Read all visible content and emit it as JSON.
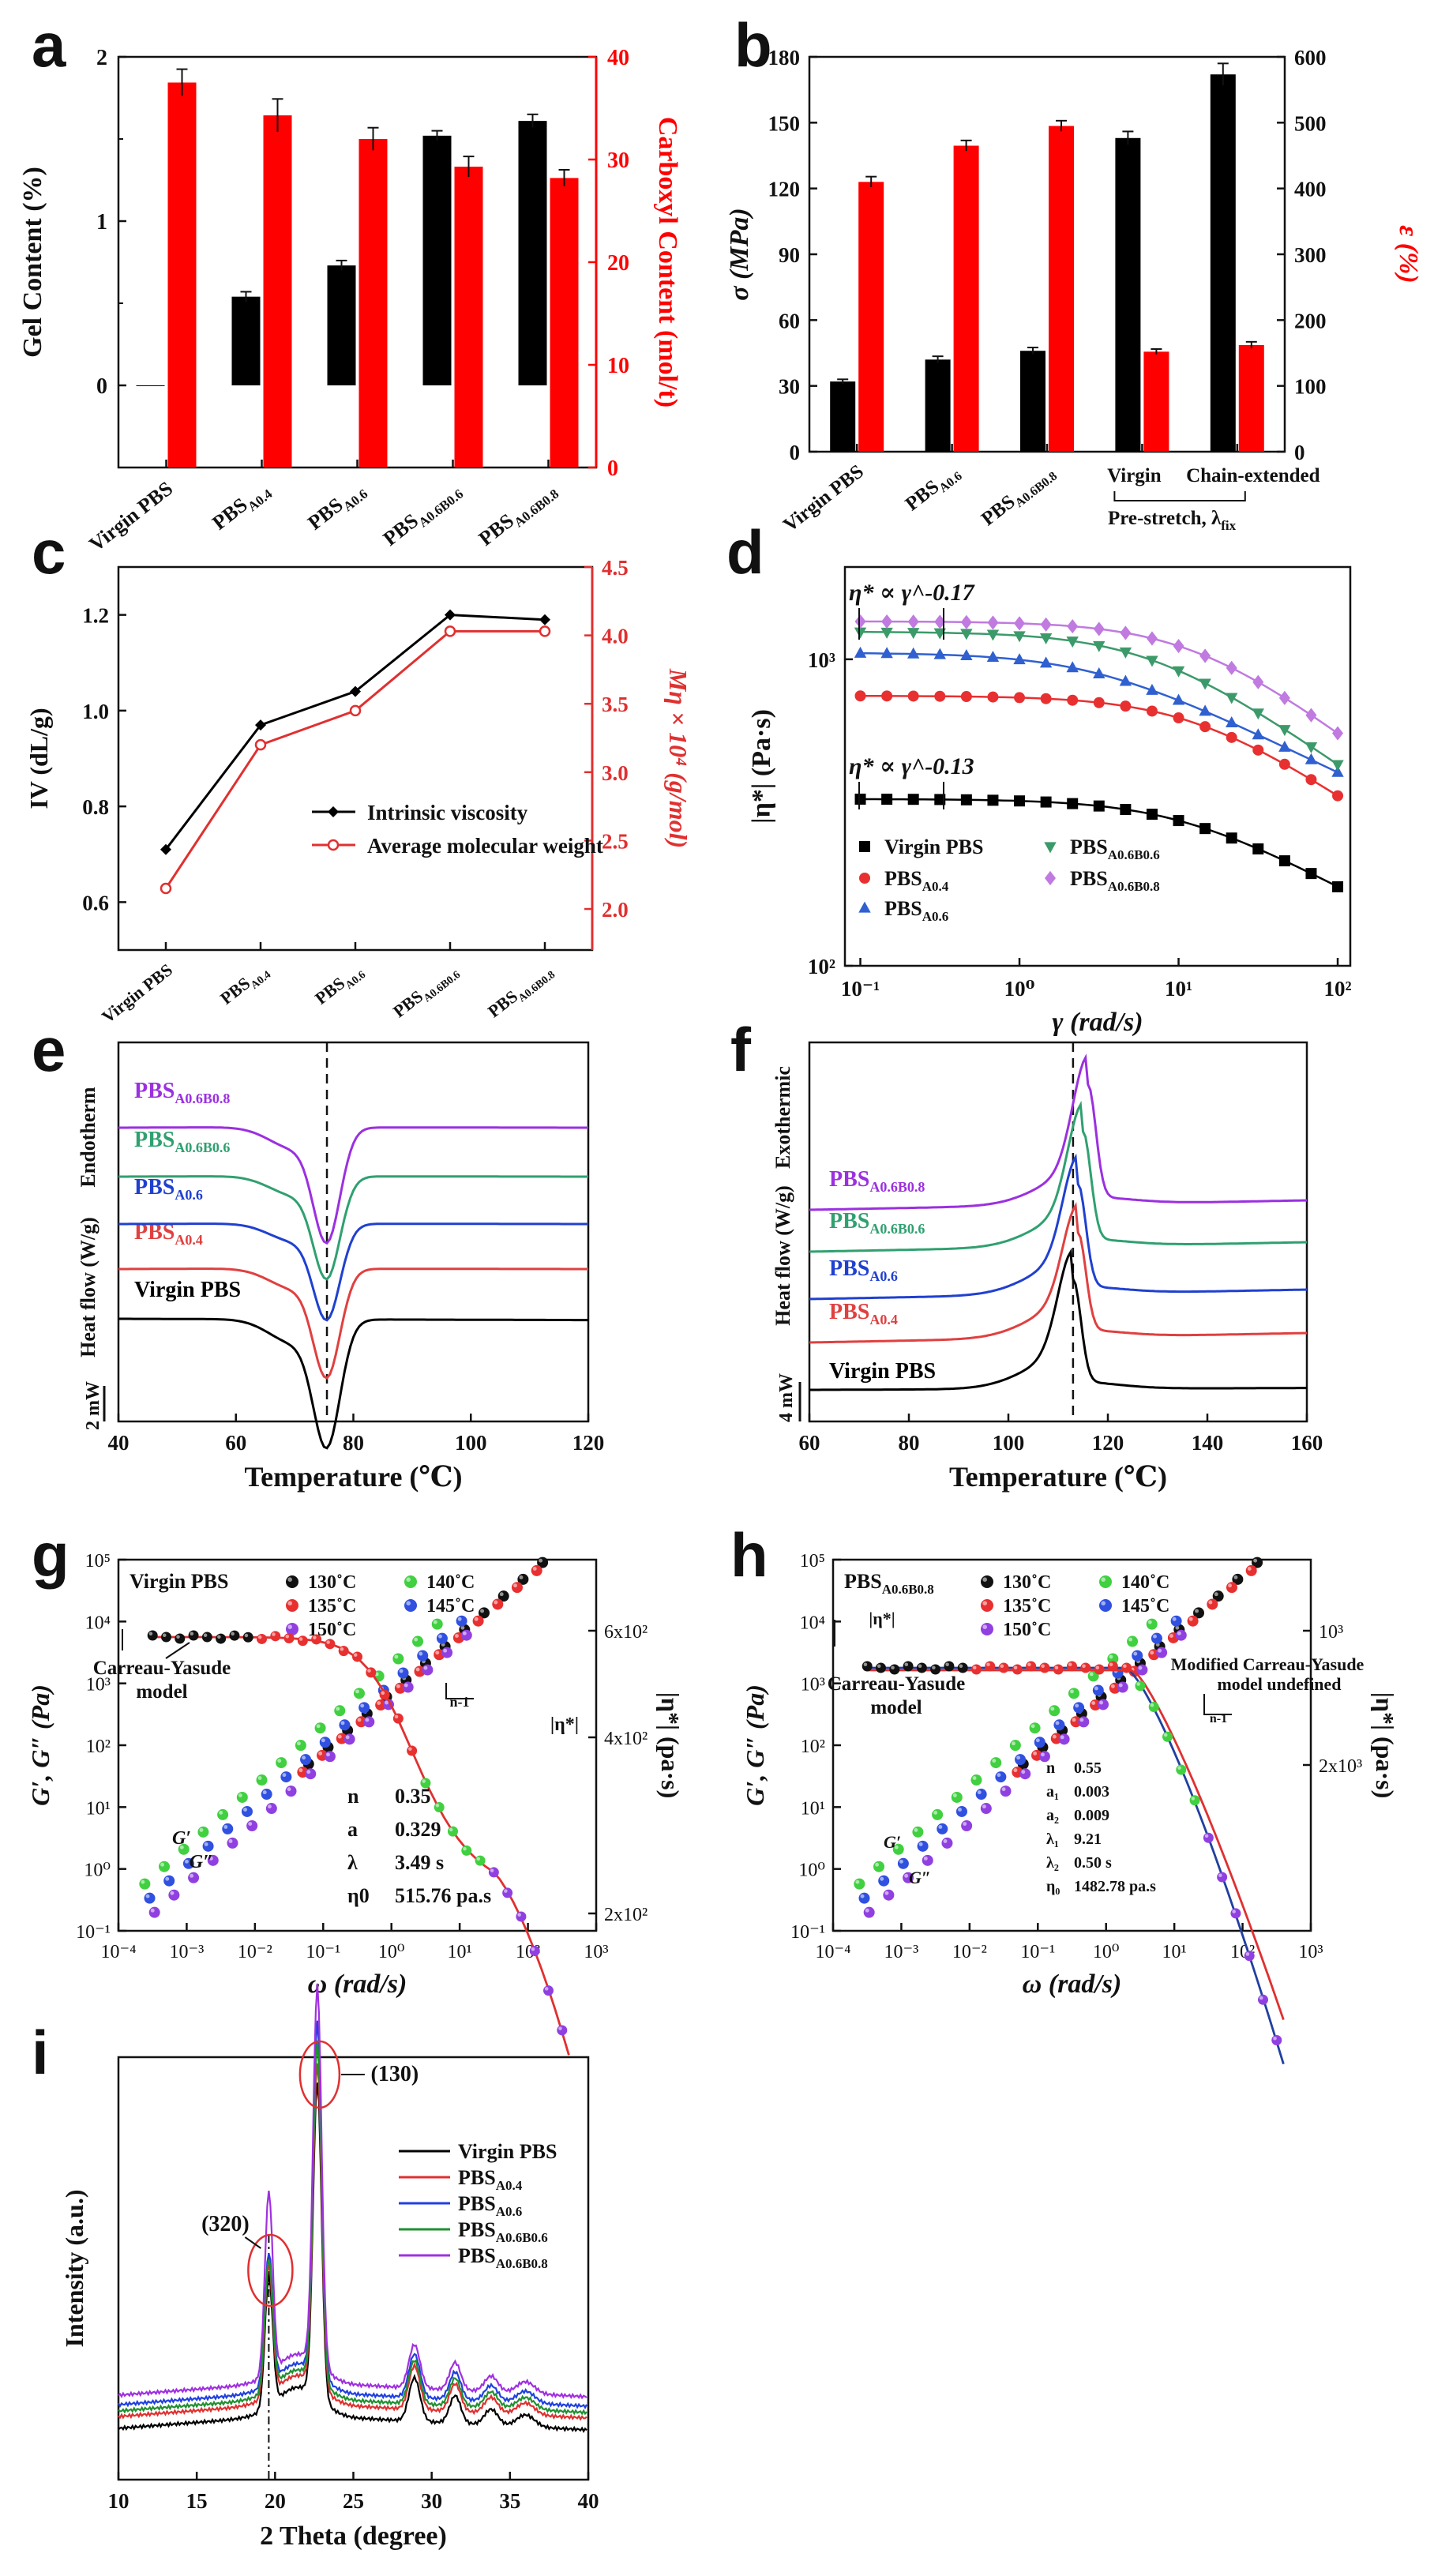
{
  "panels": {
    "a": {
      "letter": "a"
    },
    "b": {
      "letter": "b"
    },
    "c": {
      "letter": "c"
    },
    "d": {
      "letter": "d"
    },
    "e": {
      "letter": "e"
    },
    "f": {
      "letter": "f"
    },
    "g": {
      "letter": "g"
    },
    "h": {
      "letter": "h"
    },
    "i": {
      "letter": "i"
    }
  },
  "chart_data": [
    {
      "id": "a",
      "type": "bar",
      "categories": [
        "Virgin PBS",
        "PBS_A0.4",
        "PBS_A0.6",
        "PBS_A0.6B0.6",
        "PBS_A0.6B0.8"
      ],
      "ylabel": "Gel Content (%)",
      "y2label": "Carboxyl Content (mol/t)",
      "ylim": [
        -0.5,
        2
      ],
      "y2lim": [
        0,
        40
      ],
      "yticks": [
        "0",
        "1",
        "2"
      ],
      "y2ticks": [
        "0",
        "10",
        "20",
        "30",
        "40"
      ],
      "series": [
        {
          "name": "Gel Content",
          "color": "#000000",
          "axis": "left",
          "values": [
            0.0,
            0.54,
            0.73,
            1.52,
            1.61
          ],
          "err": [
            0.0,
            0.03,
            0.03,
            0.03,
            0.04
          ]
        },
        {
          "name": "Carboxyl Content",
          "color": "#ff0000",
          "axis": "right",
          "values": [
            37.5,
            34.3,
            32.0,
            29.3,
            28.2
          ],
          "err": [
            1.3,
            1.6,
            1.1,
            1.0,
            0.8
          ]
        }
      ]
    },
    {
      "id": "b",
      "type": "bar",
      "categories": [
        "Virgin PBS",
        "PBS_A0.6",
        "PBS_A0.6B0.8",
        "Virgin",
        "Chain-extended"
      ],
      "group_label": "Pre-stretch, λ",
      "group_label_sub": "fix",
      "ylabel": "σ (MPa)",
      "y2label": "ε (%)",
      "ylim": [
        0,
        180
      ],
      "y2lim": [
        0,
        600
      ],
      "yticks": [
        "0",
        "30",
        "60",
        "90",
        "120",
        "150",
        "180"
      ],
      "y2ticks": [
        "0",
        "100",
        "200",
        "300",
        "400",
        "500",
        "600"
      ],
      "series": [
        {
          "name": "σ",
          "color": "#000000",
          "axis": "left",
          "values": [
            32,
            42,
            46,
            143,
            172
          ],
          "err": [
            1,
            1.5,
            1.5,
            3,
            5
          ]
        },
        {
          "name": "ε",
          "color": "#ff0000",
          "axis": "right",
          "values": [
            410,
            465,
            495,
            152,
            162
          ],
          "err": [
            8,
            8,
            8,
            4,
            5
          ]
        }
      ]
    },
    {
      "id": "c",
      "type": "line",
      "categories": [
        "Virgin PBS",
        "PBS_A0.4",
        "PBS_A0.6",
        "PBS_A0.6B0.6",
        "PBS_A0.6B0.8"
      ],
      "ylabel": "IV (dL/g)",
      "y2label": "Mη × 10⁴ (g/mol)",
      "ylim": [
        0.5,
        1.3
      ],
      "y2lim": [
        1.7,
        4.5
      ],
      "yticks": [
        "0.6",
        "0.8",
        "1.0",
        "1.2"
      ],
      "y2ticks": [
        "2.0",
        "2.5",
        "3.0",
        "3.5",
        "4.0",
        "4.5"
      ],
      "series": [
        {
          "name": "Intrinsic viscosity",
          "color": "#000000",
          "axis": "left",
          "values": [
            0.71,
            0.97,
            1.04,
            1.2,
            1.19
          ]
        },
        {
          "name": "Average molecular weight",
          "color": "#e03030",
          "axis": "right",
          "values": [
            2.15,
            3.2,
            3.45,
            4.03,
            4.03
          ]
        }
      ]
    },
    {
      "id": "d",
      "type": "scatter",
      "xlabel": "γ (rad/s)",
      "ylabel": "|η*| (Pa·s)",
      "xlim": [
        0.08,
        120
      ],
      "ylim": [
        100,
        2000
      ],
      "xscale": "log",
      "yscale": "log",
      "xticks": [
        "10⁻¹",
        "10⁰",
        "10¹",
        "10²"
      ],
      "yticks": [
        "10²",
        "10³"
      ],
      "annotations": [
        "η* ∝ γ^-0.17",
        "η* ∝ γ^-0.13"
      ],
      "series": [
        {
          "name": "Virgin PBS",
          "marker": "square",
          "color": "#000000",
          "eta0": 350,
          "lam": 0.1,
          "n": 0.8
        },
        {
          "name": "PBS_A0.4",
          "marker": "circle",
          "color": "#e83030",
          "eta0": 760,
          "lam": 0.08,
          "n": 0.75
        },
        {
          "name": "PBS_A0.6",
          "marker": "triangle",
          "color": "#3060d0",
          "eta0": 1050,
          "lam": 0.35,
          "n": 0.82
        },
        {
          "name": "PBS_A0.6B0.6",
          "marker": "triangle-down",
          "color": "#3c9a6a",
          "eta0": 1230,
          "lam": 0.15,
          "n": 0.74
        },
        {
          "name": "PBS_A0.6B0.8",
          "marker": "diamond",
          "color": "#c07ae0",
          "eta0": 1330,
          "lam": 0.08,
          "n": 0.72
        }
      ]
    },
    {
      "id": "e",
      "type": "line",
      "xlabel": "Temperature (℃)",
      "ylabel": "Heat flow (W/g)",
      "direction_label": "Endotherm",
      "scale_label": "2 mW",
      "xlim": [
        40,
        120
      ],
      "xticks": [
        "40",
        "60",
        "80",
        "100",
        "120"
      ],
      "peak_T": 75.5,
      "series": [
        {
          "name": "Virgin PBS",
          "color": "#000000",
          "offset": 0,
          "depth": 1.0
        },
        {
          "name": "PBS_A0.4",
          "color": "#e04040",
          "offset": 1,
          "depth": 0.85
        },
        {
          "name": "PBS_A0.6",
          "color": "#2040d0",
          "offset": 2,
          "depth": 0.75
        },
        {
          "name": "PBS_A0.6B0.6",
          "color": "#30a070",
          "offset": 3,
          "depth": 0.8
        },
        {
          "name": "PBS_A0.6B0.8",
          "color": "#9b30e0",
          "offset": 4,
          "depth": 0.9
        }
      ]
    },
    {
      "id": "f",
      "type": "line",
      "xlabel": "Temperature (℃)",
      "ylabel": "Heat flow (W/g)",
      "direction_label": "Exothermic",
      "scale_label": "4 mW",
      "xlim": [
        60,
        160
      ],
      "xticks": [
        "60",
        "80",
        "100",
        "120",
        "140",
        "160"
      ],
      "peak_T": 113,
      "series": [
        {
          "name": "Virgin PBS",
          "color": "#000000",
          "offset": 0,
          "peak": 1.0
        },
        {
          "name": "PBS_A0.4",
          "color": "#e04040",
          "offset": 1,
          "peak": 0.95
        },
        {
          "name": "PBS_A0.6",
          "color": "#2040d0",
          "offset": 2,
          "peak": 1.0
        },
        {
          "name": "PBS_A0.6B0.6",
          "color": "#30a070",
          "offset": 3,
          "peak": 1.05
        },
        {
          "name": "PBS_A0.6B0.8",
          "color": "#9b30e0",
          "offset": 4,
          "peak": 1.1
        }
      ]
    },
    {
      "id": "g",
      "type": "scatter",
      "title": "Virgin PBS",
      "xlabel": "ω (rad/s)",
      "ylabel": "G′, G″ (Pa)",
      "y2label": "|η*| (pa·s)",
      "xlim": [
        0.0001,
        1000
      ],
      "ylim": [
        0.1,
        100000
      ],
      "xscale": "log",
      "yscale": "log",
      "xticks": [
        "10⁻⁴",
        "10⁻³",
        "10⁻²",
        "10⁻¹",
        "10⁰",
        "10¹",
        "10²",
        "10³"
      ],
      "yticks": [
        "10⁻¹",
        "10⁰",
        "10¹",
        "10²",
        "10³",
        "10⁴",
        "10⁵"
      ],
      "y2ticks": [
        "2x10²",
        "4x10²",
        "6x10²"
      ],
      "model_label": "Carreau-Yasude model",
      "params": [
        "n",
        "0.35",
        "a",
        "0.329",
        "λ",
        "3.49 s",
        "η0",
        "515.76 pa.s"
      ],
      "temps": [
        {
          "name": "130˚C",
          "color": "#111111"
        },
        {
          "name": "135˚C",
          "color": "#e83030"
        },
        {
          "name": "140˚C",
          "color": "#40d040"
        },
        {
          "name": "145˚C",
          "color": "#3050e0"
        },
        {
          "name": "150˚C",
          "color": "#9040e0"
        }
      ],
      "curve_labels": [
        "G′",
        "G″",
        "|η*|",
        "n-1"
      ]
    },
    {
      "id": "h",
      "type": "scatter",
      "title": "PBS_A0.6B0.8",
      "xlabel": "ω (rad/s)",
      "ylabel": "G′, G″ (Pa)",
      "y2label": "|η*| (pa·s)",
      "xlim": [
        0.0001,
        1000
      ],
      "ylim": [
        0.1,
        100000
      ],
      "xscale": "log",
      "yscale": "log",
      "xticks": [
        "10⁻⁴",
        "10⁻³",
        "10⁻²",
        "10⁻¹",
        "10⁰",
        "10¹",
        "10²",
        "10³"
      ],
      "yticks": [
        "10⁻¹",
        "10⁰",
        "10¹",
        "10²",
        "10³",
        "10⁴",
        "10⁵"
      ],
      "y2ticks": [
        "10³",
        "2x10³"
      ],
      "model_label": "Carreau-Yasude model",
      "model2_label": "Modified Carreau-Yasude model",
      "params": [
        "n",
        "0.55",
        "a₁",
        "0.003",
        "a₂",
        "0.009",
        "λ₁",
        "9.21",
        "λ₂",
        "0.50 s",
        "η₀",
        "1482.78 pa.s"
      ],
      "temps": [
        {
          "name": "130˚C",
          "color": "#111111"
        },
        {
          "name": "135˚C",
          "color": "#e83030"
        },
        {
          "name": "140˚C",
          "color": "#40d040"
        },
        {
          "name": "145˚C",
          "color": "#3050e0"
        },
        {
          "name": "150˚C",
          "color": "#9040e0"
        }
      ],
      "curve_labels": [
        "G′",
        "G″",
        "|η*|",
        "n-1"
      ]
    },
    {
      "id": "i",
      "type": "line",
      "xlabel": "2 Theta (degree)",
      "ylabel": "Intensity (a.u.)",
      "xlim": [
        10,
        40
      ],
      "xticks": [
        "10",
        "15",
        "20",
        "25",
        "30",
        "35",
        "40"
      ],
      "peaks": [
        {
          "label": "(320)",
          "x": 19.6
        },
        {
          "label": "(130)",
          "x": 22.7
        }
      ],
      "series": [
        {
          "name": "Virgin PBS",
          "color": "#000000",
          "offset": 0
        },
        {
          "name": "PBS_A0.4",
          "color": "#e03030",
          "offset": 1
        },
        {
          "name": "PBS_A0.6",
          "color": "#2040e0",
          "offset": 2
        },
        {
          "name": "PBS_A0.6B0.6",
          "color": "#209030",
          "offset": 1.5
        },
        {
          "name": "PBS_A0.6B0.8",
          "color": "#a030e0",
          "offset": 3
        }
      ]
    }
  ]
}
